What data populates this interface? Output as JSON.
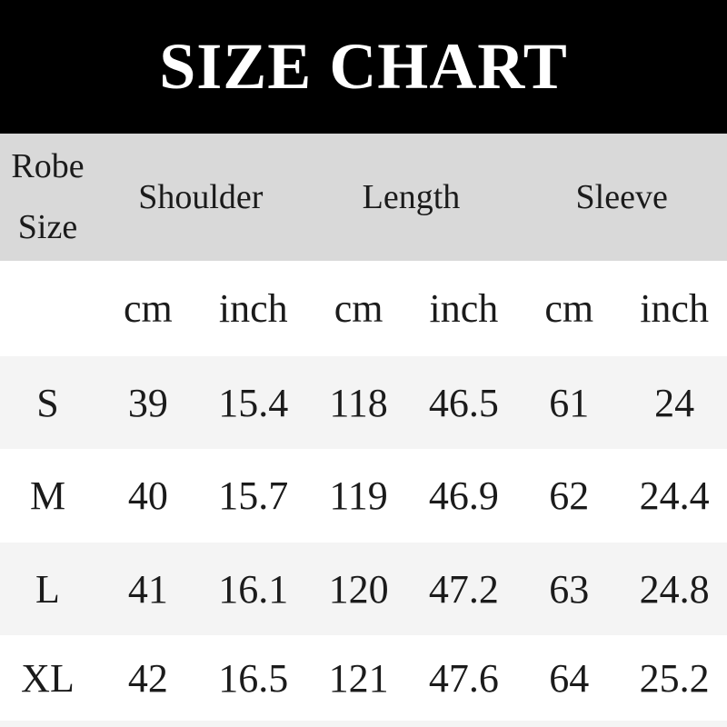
{
  "chart_data": {
    "type": "table",
    "title": "SIZE CHART",
    "size_column_header": {
      "line1": "Robe",
      "line2": "Size"
    },
    "column_groups": [
      "Shoulder",
      "Length",
      "Sleeve"
    ],
    "unit_row": [
      "",
      "cm",
      "inch",
      "cm",
      "inch",
      "cm",
      "inch"
    ],
    "columns": [
      "Robe Size",
      "Shoulder cm",
      "Shoulder inch",
      "Length cm",
      "Length inch",
      "Sleeve cm",
      "Sleeve inch"
    ],
    "rows": [
      [
        "S",
        39,
        15.4,
        118,
        46.5,
        61,
        24
      ],
      [
        "M",
        40,
        15.7,
        119,
        46.9,
        62,
        24.4
      ],
      [
        "L",
        41,
        16.1,
        120,
        47.2,
        63,
        24.8
      ],
      [
        "XL",
        42,
        16.5,
        121,
        47.6,
        64,
        25.2
      ]
    ]
  },
  "colors": {
    "banner_bg": "#000000",
    "banner_text": "#ffffff",
    "header_row_bg": "#d9d9d9",
    "row_bg": "#ffffff",
    "row_alt_bg": "#f4f4f4",
    "text": "#1b1b1b"
  }
}
